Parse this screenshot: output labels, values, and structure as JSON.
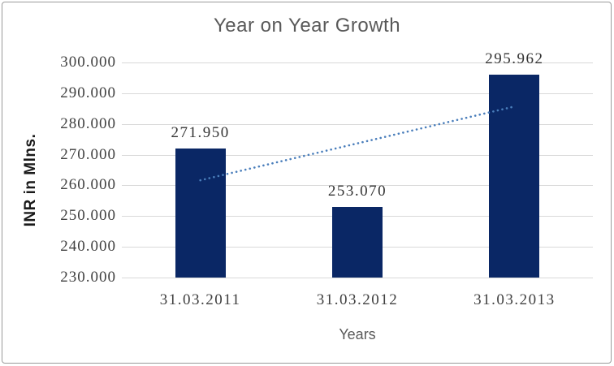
{
  "chart_data": {
    "type": "bar",
    "title": "Year on Year Growth",
    "xlabel": "Years",
    "ylabel": "INR in Mlns.",
    "categories": [
      "31.03.2011",
      "31.03.2012",
      "31.03.2013"
    ],
    "values": [
      271.95,
      253.07,
      295.962
    ],
    "data_labels": [
      "271.950",
      "253.070",
      "295.962"
    ],
    "y_ticks": [
      {
        "value": 300,
        "label": "300.000"
      },
      {
        "value": 290,
        "label": "290.000"
      },
      {
        "value": 280,
        "label": "280.000"
      },
      {
        "value": 270,
        "label": "270.000"
      },
      {
        "value": 260,
        "label": "260.000"
      },
      {
        "value": 250,
        "label": "250.000"
      },
      {
        "value": 240,
        "label": "240.000"
      },
      {
        "value": 230,
        "label": "230.000"
      }
    ],
    "ylim": [
      230,
      300
    ],
    "grid": true,
    "legend": "none",
    "bar_color": "#0A2765",
    "gridline_color": "#D9D9D9",
    "trendline": {
      "type": "linear",
      "style": "dotted",
      "color": "#4A7EBB",
      "start_value": 261.66,
      "end_value": 285.67
    }
  }
}
